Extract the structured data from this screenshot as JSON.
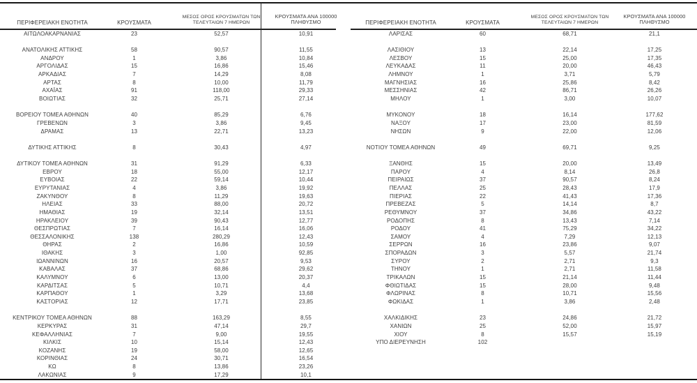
{
  "headers": {
    "region": "ΠΕΡΙΦΕΡΕΙΑΚΗ ΕΝΟΤΗΤΑ",
    "cases": "ΚΡΟΥΣΜΑΤΑ",
    "avg7_line1": "ΜΕΣΟΣ ΟΡΟΣ ΚΡΟΥΣΜΑΤΩΝ ΤΩΝ",
    "avg7_line2": "ΤΕΛΕΥΤΑΙΩΝ 7 ΗΜΕΡΩΝ",
    "per100k_line1": "ΚΡΟΥΣΜΑΤΑ ΑΝΑ 100000",
    "per100k_line2": "ΠΛΗΘΥΣΜΟ"
  },
  "columns": [
    "region",
    "cases",
    "avg7",
    "per100k"
  ],
  "colors": {
    "text": "#3c3c3c",
    "rule": "#161616"
  },
  "tables": [
    {
      "id": "left",
      "sections": [
        [
          [
            "ΑΙΤΩΛΟΑΚΑΡΝΑΝΙΑΣ",
            "23",
            "52,57",
            "10,91"
          ]
        ],
        [
          [
            "ΑΝΑΤΟΛΙΚΗΣ ΑΤΤΙΚΗΣ",
            "58",
            "90,57",
            "11,55"
          ],
          [
            "ΑΝΔΡΟΥ",
            "1",
            "3,86",
            "10,84"
          ],
          [
            "ΑΡΓΟΛΙΔΑΣ",
            "15",
            "16,86",
            "15,46"
          ],
          [
            "ΑΡΚΑΔΙΑΣ",
            "7",
            "14,29",
            "8,08"
          ],
          [
            "ΑΡΤΑΣ",
            "8",
            "10,00",
            "11,79"
          ],
          [
            "ΑΧΑΪΑΣ",
            "91",
            "118,00",
            "29,33"
          ],
          [
            "ΒΟΙΩΤΙΑΣ",
            "32",
            "25,71",
            "27,14"
          ]
        ],
        [
          [
            "ΒΟΡΕΙΟΥ ΤΟΜΕΑ ΑΘΗΝΩΝ",
            "40",
            "85,29",
            "6,76"
          ],
          [
            "ΓΡΕΒΕΝΩΝ",
            "3",
            "3,86",
            "9,45"
          ],
          [
            "ΔΡΑΜΑΣ",
            "13",
            "22,71",
            "13,23"
          ]
        ],
        [
          [
            "ΔΥΤΙΚΗΣ ΑΤΤΙΚΗΣ",
            "8",
            "30,43",
            "4,97"
          ]
        ],
        [
          [
            "ΔΥΤΙΚΟΥ ΤΟΜΕΑ ΑΘΗΝΩΝ",
            "31",
            "91,29",
            "6,33"
          ],
          [
            "ΕΒΡΟΥ",
            "18",
            "55,00",
            "12,17"
          ],
          [
            "ΕΥΒΟΙΑΣ",
            "22",
            "59,14",
            "10,44"
          ],
          [
            "ΕΥΡΥΤΑΝΙΑΣ",
            "4",
            "3,86",
            "19,92"
          ],
          [
            "ΖΑΚΥΝΘΟΥ",
            "8",
            "11,29",
            "19,63"
          ],
          [
            "ΗΛΕΙΑΣ",
            "33",
            "88,00",
            "20,72"
          ],
          [
            "ΗΜΑΘΙΑΣ",
            "19",
            "32,14",
            "13,51"
          ],
          [
            "ΗΡΑΚΛΕΙΟΥ",
            "39",
            "90,43",
            "12,77"
          ],
          [
            "ΘΕΣΠΡΩΤΙΑΣ",
            "7",
            "16,14",
            "16,06"
          ],
          [
            "ΘΕΣΣΑΛΟΝΙΚΗΣ",
            "138",
            "280,29",
            "12,43"
          ],
          [
            "ΘΗΡΑΣ",
            "2",
            "16,86",
            "10,59"
          ],
          [
            "ΙΘΑΚΗΣ",
            "3",
            "1,00",
            "92,85"
          ],
          [
            "ΙΩΑΝΝΙΝΩΝ",
            "16",
            "20,57",
            "9,53"
          ],
          [
            "ΚΑΒΑΛΑΣ",
            "37",
            "68,86",
            "29,62"
          ],
          [
            "ΚΑΛΥΜΝΟΥ",
            "6",
            "13,00",
            "20,37"
          ],
          [
            "ΚΑΡΔΙΤΣΑΣ",
            "5",
            "10,71",
            "4,4"
          ],
          [
            "ΚΑΡΠΑΘΟΥ",
            "1",
            "3,29",
            "13,68"
          ],
          [
            "ΚΑΣΤΟΡΙΑΣ",
            "12",
            "17,71",
            "23,85"
          ]
        ],
        [
          [
            "ΚΕΝΤΡΙΚΟΥ ΤΟΜΕΑ ΑΘΗΝΩΝ",
            "88",
            "163,29",
            "8,55"
          ],
          [
            "ΚΕΡΚΥΡΑΣ",
            "31",
            "47,14",
            "29,7"
          ],
          [
            "ΚΕΦΑΛΛΗΝΙΑΣ",
            "7",
            "9,00",
            "19,55"
          ],
          [
            "ΚΙΛΚΙΣ",
            "10",
            "15,14",
            "12,43"
          ],
          [
            "ΚΟΖΑΝΗΣ",
            "19",
            "58,00",
            "12,65"
          ],
          [
            "ΚΟΡΙΝΘΙΑΣ",
            "24",
            "30,71",
            "16,54"
          ],
          [
            "ΚΩ",
            "8",
            "13,86",
            "23,26"
          ],
          [
            "ΛΑΚΩΝΙΑΣ",
            "9",
            "17,29",
            "10,1"
          ]
        ]
      ]
    },
    {
      "id": "right",
      "sections": [
        [
          [
            "ΛΑΡΙΣΑΣ",
            "60",
            "68,71",
            "21,1"
          ]
        ],
        [
          [
            "ΛΑΣΙΘΙΟΥ",
            "13",
            "22,14",
            "17,25"
          ],
          [
            "ΛΕΣΒΟΥ",
            "15",
            "25,00",
            "17,35"
          ],
          [
            "ΛΕΥΚΑΔΑΣ",
            "11",
            "20,00",
            "46,43"
          ],
          [
            "ΛΗΜΝΟΥ",
            "1",
            "3,71",
            "5,79"
          ],
          [
            "ΜΑΓΝΗΣΙΑΣ",
            "16",
            "25,86",
            "8,42"
          ],
          [
            "ΜΕΣΣΗΝΙΑΣ",
            "42",
            "86,71",
            "26,26"
          ],
          [
            "ΜΗΛΟΥ",
            "1",
            "3,00",
            "10,07"
          ]
        ],
        [
          [
            "ΜΥΚΟΝΟΥ",
            "18",
            "16,14",
            "177,62"
          ],
          [
            "ΝΑΞΟΥ",
            "17",
            "23,00",
            "81,59"
          ],
          [
            "ΝΗΣΩΝ",
            "9",
            "22,00",
            "12,06"
          ]
        ],
        [
          [
            "ΝΟΤΙΟΥ ΤΟΜΕΑ ΑΘΗΝΩΝ",
            "49",
            "69,71",
            "9,25"
          ]
        ],
        [
          [
            "ΞΑΝΘΗΣ",
            "15",
            "20,00",
            "13,49"
          ],
          [
            "ΠΑΡΟΥ",
            "4",
            "8,14",
            "26,8"
          ],
          [
            "ΠΕΙΡΑΙΩΣ",
            "37",
            "90,57",
            "8,24"
          ],
          [
            "ΠΕΛΛΑΣ",
            "25",
            "28,43",
            "17,9"
          ],
          [
            "ΠΙΕΡΙΑΣ",
            "22",
            "41,43",
            "17,36"
          ],
          [
            "ΠΡΕΒΕΖΑΣ",
            "5",
            "14,14",
            "8,7"
          ],
          [
            "ΡΕΘΥΜΝΟΥ",
            "37",
            "34,86",
            "43,22"
          ],
          [
            "ΡΟΔΟΠΗΣ",
            "8",
            "13,43",
            "7,14"
          ],
          [
            "ΡΟΔΟΥ",
            "41",
            "75,29",
            "34,22"
          ],
          [
            "ΣΑΜΟΥ",
            "4",
            "7,29",
            "12,13"
          ],
          [
            "ΣΕΡΡΩΝ",
            "16",
            "23,86",
            "9,07"
          ],
          [
            "ΣΠΟΡΑΔΩΝ",
            "3",
            "5,57",
            "21,74"
          ],
          [
            "ΣΥΡΟΥ",
            "2",
            "2,71",
            "9,3"
          ],
          [
            "ΤΗΝΟΥ",
            "1",
            "2,71",
            "11,58"
          ],
          [
            "ΤΡΙΚΑΛΩΝ",
            "15",
            "21,14",
            "11,44"
          ],
          [
            "ΦΘΙΩΤΙΔΑΣ",
            "15",
            "28,00",
            "9,48"
          ],
          [
            "ΦΛΩΡΙΝΑΣ",
            "8",
            "10,71",
            "15,56"
          ],
          [
            "ΦΩΚΙΔΑΣ",
            "1",
            "3,86",
            "2,48"
          ]
        ],
        [
          [
            "ΧΑΛΚΙΔΙΚΗΣ",
            "23",
            "24,86",
            "21,72"
          ],
          [
            "ΧΑΝΙΩΝ",
            "25",
            "52,00",
            "15,97"
          ],
          [
            "ΧΙΟΥ",
            "8",
            "15,57",
            "15,19"
          ],
          [
            "ΥΠΟ ΔΙΕΡΕΥΝΗΣΗ",
            "102",
            "",
            ""
          ]
        ]
      ]
    }
  ]
}
